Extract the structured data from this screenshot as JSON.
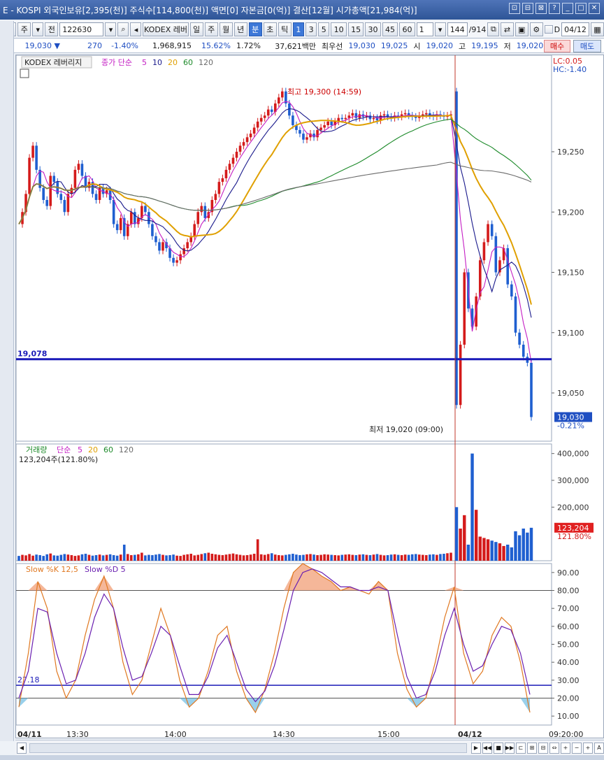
{
  "window": {
    "title": "E - KOSPI 외국인보유[2,395(천)] 주식수[114,800(천)] 액면[0] 자본금[0(억)] 결산[12월] 시가총액[21,984(억)]",
    "title_icons": [
      "⊡",
      "⊟",
      "⊠",
      "?",
      "_",
      "□",
      "✕"
    ]
  },
  "toolbar": {
    "period_label": "주",
    "prev_label": "전",
    "code": "122630",
    "name_label": "KODEX 레버",
    "period_buttons": [
      "일",
      "주",
      "월",
      "년",
      "분",
      "초",
      "틱"
    ],
    "active_period": "분",
    "interval_buttons": [
      "1",
      "3",
      "5",
      "10",
      "15",
      "30",
      "45",
      "60"
    ],
    "active_interval": "1",
    "count_value": "1",
    "range_value": "144",
    "range_total": "/914",
    "date_value": "04/12",
    "d_label": "D"
  },
  "quote": {
    "price": "19,030",
    "change": "270",
    "change_pct": "-1.40%",
    "volume": "1,968,915",
    "turnover_pct": "15.62%",
    "ratio": "1.72%",
    "amount": "37,621백만",
    "best_label": "최우선",
    "best_ask": "19,030",
    "best_bid": "19,025",
    "open_label": "시",
    "open": "19,020",
    "high_label": "고",
    "high": "19,195",
    "low_label": "저",
    "low": "19,020",
    "buy_label": "매수",
    "sell_label": "매도"
  },
  "chart_data": {
    "type": "candlestick",
    "instrument_label": "KODEX 레버리지",
    "ma_legend": {
      "label": "종가 단순",
      "periods": [
        "5",
        "10",
        "20",
        "60",
        "120"
      ],
      "colors": [
        "#c41ec4",
        "#1a1a8c",
        "#e0a000",
        "#1d8a2a",
        "#6b6b6b"
      ]
    },
    "lc_label": "LC:0.05",
    "hc_label": "HC:-1.40",
    "price_axis": {
      "min": 19010,
      "max": 19330,
      "ticks": [
        19250,
        19200,
        19150,
        19100,
        19050
      ]
    },
    "price_tick_labels": [
      "19,250",
      "19,200",
      "19,150",
      "19,100",
      "19,050"
    ],
    "hline_value": 19078,
    "hline_label": "19,078",
    "high_annotation": "최고 19,300 (14:59)",
    "low_annotation": "최저 19,020 (09:00)",
    "last_price_label": "19,030",
    "last_pct_label": "-0.21%",
    "volume_legend": {
      "label": "거래량",
      "ma": "단순",
      "periods": [
        "5",
        "20",
        "60",
        "120"
      ]
    },
    "volume_value_label": "123,204주(121.80%)",
    "volume_axis": {
      "min": 0,
      "max": 420000,
      "ticks": [
        400000,
        300000,
        200000
      ]
    },
    "volume_tick_labels": [
      "400,000",
      "300,000",
      "200,000"
    ],
    "volume_last_label": "123,204",
    "volume_last_pct": "121.80%",
    "stoch_legend": {
      "k": "Slow %K 12,5",
      "d": "Slow %D 5"
    },
    "stoch_axis": {
      "min": 5,
      "max": 95,
      "ticks": [
        90,
        80,
        70,
        60,
        50,
        40,
        30,
        20,
        10
      ]
    },
    "stoch_tick_labels": [
      "90.00",
      "80.00",
      "70.00",
      "60.00",
      "50.00",
      "40.00",
      "30.00",
      "20.00",
      "10.00"
    ],
    "stoch_hline_label": "27.18",
    "stoch_hline_value": 27.18,
    "x_labels": [
      "04/11",
      "13:30",
      "14:00",
      "14:30",
      "15:00",
      "04/12",
      "09:20:00"
    ],
    "x_label_at": [
      0,
      70,
      210,
      365,
      515,
      630,
      760
    ],
    "candles_day1_count": 124,
    "candles_day2_count": 20,
    "close_path_day1": [
      19190,
      19200,
      19215,
      19245,
      19255,
      19235,
      19220,
      19210,
      19205,
      19230,
      19225,
      19215,
      19210,
      19200,
      19215,
      19220,
      19235,
      19240,
      19230,
      19220,
      19225,
      19215,
      19210,
      19220,
      19215,
      19218,
      19210,
      19190,
      19185,
      19195,
      19180,
      19190,
      19200,
      19190,
      19195,
      19205,
      19200,
      19190,
      19180,
      19175,
      19168,
      19175,
      19170,
      19162,
      19158,
      19160,
      19165,
      19170,
      19175,
      19180,
      19190,
      19200,
      19205,
      19195,
      19200,
      19210,
      19215,
      19225,
      19228,
      19235,
      19240,
      19245,
      19250,
      19255,
      19258,
      19262,
      19265,
      19270,
      19275,
      19278,
      19280,
      19285,
      19283,
      19290,
      19295,
      19300,
      19290,
      19280,
      19272,
      19268,
      19265,
      19260,
      19262,
      19265,
      19262,
      19268,
      19270,
      19272,
      19275,
      19272,
      19275,
      19278,
      19277,
      19278,
      19280,
      19282,
      19278,
      19281,
      19279,
      19280,
      19277,
      19278,
      19276,
      19280,
      19281,
      19279,
      19278,
      19280,
      19279,
      19281,
      19282,
      19280,
      19279,
      19278,
      19280,
      19281,
      19282,
      19280,
      19279,
      19281,
      19280,
      19279,
      19280,
      19281
    ],
    "close_path_day2": [
      19040,
      19090,
      19150,
      19120,
      19105,
      19130,
      19160,
      19175,
      19190,
      19180,
      19150,
      19160,
      19170,
      19140,
      19130,
      19100,
      19090,
      19080,
      19075,
      19030
    ],
    "volume_day1": [
      18,
      22,
      20,
      25,
      19,
      23,
      21,
      18,
      24,
      27,
      20,
      19,
      22,
      25,
      23,
      21,
      18,
      20,
      24,
      26,
      22,
      19,
      21,
      23,
      20,
      22,
      24,
      21,
      19,
      23,
      60,
      25,
      21,
      22,
      24,
      30,
      20,
      22,
      21,
      23,
      25,
      22,
      20,
      21,
      23,
      19,
      18,
      22,
      24,
      26,
      20,
      22,
      25,
      28,
      30,
      26,
      24,
      22,
      21,
      23,
      25,
      27,
      24,
      22,
      20,
      21,
      23,
      26,
      80,
      24,
      22,
      25,
      28,
      23,
      21,
      20,
      22,
      24,
      26,
      23,
      21,
      22,
      24,
      25,
      23,
      21,
      22,
      24,
      23,
      22,
      21,
      20,
      22,
      23,
      24,
      22,
      21,
      23,
      24,
      22,
      21,
      23,
      25,
      22,
      20,
      21,
      23,
      24,
      22,
      21,
      23,
      22,
      24,
      25,
      23,
      22,
      21,
      23,
      24,
      22,
      25,
      26,
      28,
      30
    ],
    "volume_day2": [
      200,
      120,
      170,
      60,
      400,
      190,
      90,
      85,
      80,
      75,
      70,
      65,
      55,
      60,
      50,
      110,
      95,
      120,
      105,
      123
    ],
    "stoch_k": [
      15,
      45,
      85,
      70,
      35,
      20,
      30,
      55,
      75,
      88,
      70,
      40,
      22,
      30,
      50,
      70,
      55,
      30,
      15,
      20,
      35,
      55,
      60,
      35,
      20,
      12,
      25,
      45,
      70,
      90,
      95,
      92,
      88,
      85,
      80,
      82,
      80,
      78,
      85,
      80,
      45,
      25,
      15,
      20,
      40,
      65,
      82,
      45,
      28,
      35,
      55,
      65,
      60,
      40,
      12
    ],
    "stoch_d": [
      20,
      35,
      70,
      68,
      45,
      28,
      30,
      45,
      65,
      78,
      70,
      48,
      30,
      32,
      45,
      60,
      55,
      38,
      22,
      22,
      32,
      48,
      55,
      40,
      25,
      18,
      24,
      38,
      58,
      80,
      90,
      92,
      90,
      86,
      82,
      82,
      80,
      80,
      82,
      80,
      55,
      32,
      20,
      22,
      35,
      55,
      70,
      50,
      35,
      38,
      50,
      60,
      58,
      45,
      22
    ]
  }
}
